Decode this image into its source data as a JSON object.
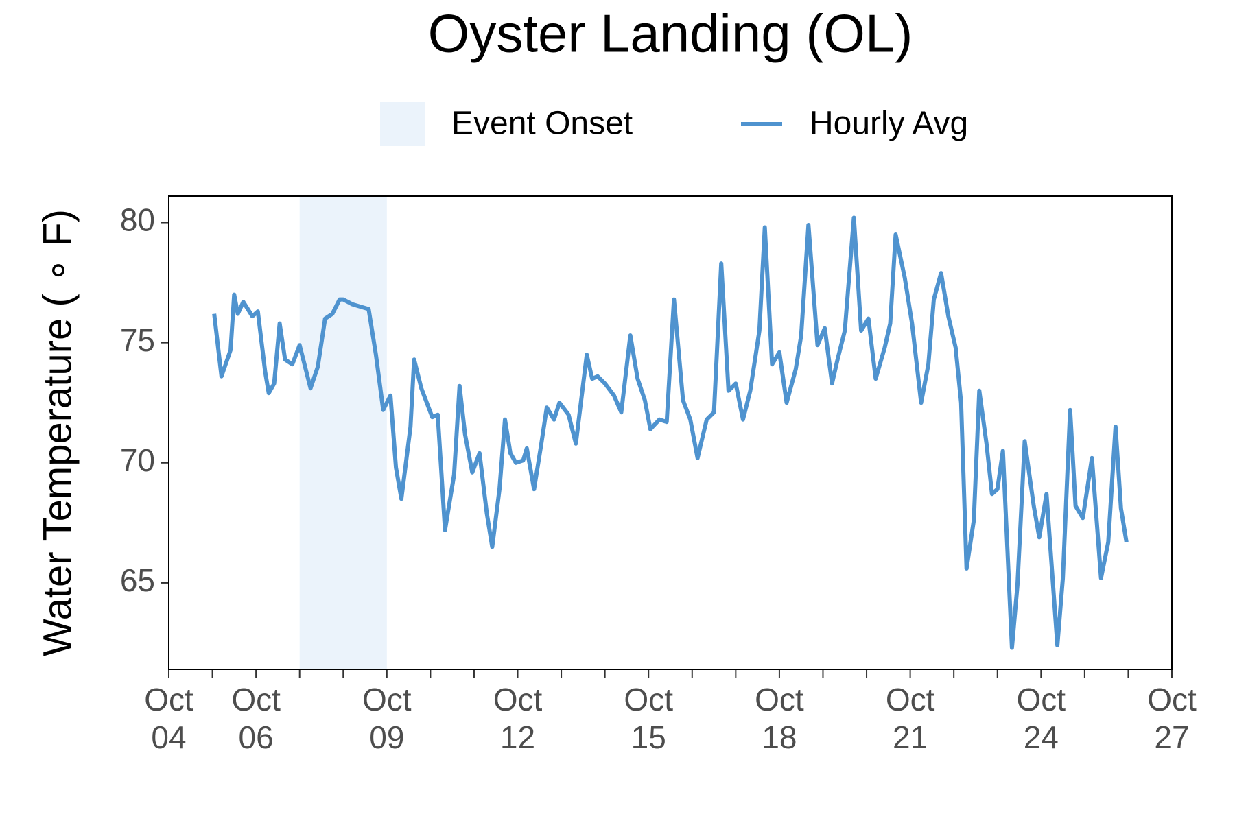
{
  "chart_data": {
    "type": "line",
    "title": "Oyster Landing (OL)",
    "y_label": "Water Temperature ( ∘ F)",
    "event_onset": {
      "name": "Event Onset",
      "color": "#ebf3fb",
      "range": [
        "10-07T00:00",
        "10-09T00:00"
      ]
    },
    "x": [
      "10-05T01:00",
      "10-05T05:00",
      "10-05T10:00",
      "10-05T12:00",
      "10-05T14:00",
      "10-05T17:00",
      "10-05T22:00",
      "10-06T01:00",
      "10-06T05:00",
      "10-06T07:00",
      "10-06T10:00",
      "10-06T13:00",
      "10-06T16:00",
      "10-06T20:00",
      "10-07T00:00",
      "10-07T06:00",
      "10-07T10:00",
      "10-07T14:00",
      "10-07T18:00",
      "10-07T22:00",
      "10-08T00:00",
      "10-08T05:00",
      "10-08T14:00",
      "10-08T18:00",
      "10-08T22:00",
      "10-09T02:00",
      "10-09T05:00",
      "10-09T08:00",
      "10-09T13:00",
      "10-09T15:00",
      "10-09T19:00",
      "10-10T01:00",
      "10-10T04:00",
      "10-10T08:00",
      "10-10T13:00",
      "10-10T16:00",
      "10-10T19:00",
      "10-10T23:00",
      "10-11T03:00",
      "10-11T07:00",
      "10-11T10:00",
      "10-11T14:00",
      "10-11T17:00",
      "10-11T20:00",
      "10-11T23:00",
      "10-12T03:00",
      "10-12T05:00",
      "10-12T09:00",
      "10-12T13:00",
      "10-12T16:00",
      "10-12T20:00",
      "10-12T23:00",
      "10-13T04:00",
      "10-13T08:00",
      "10-13T14:00",
      "10-13T17:00",
      "10-13T20:00",
      "10-14T00:00",
      "10-14T05:00",
      "10-14T09:00",
      "10-14T14:00",
      "10-14T18:00",
      "10-14T22:00",
      "10-15T01:00",
      "10-15T06:00",
      "10-15T10:00",
      "10-15T14:00",
      "10-15T19:00",
      "10-15T23:00",
      "10-16T03:00",
      "10-16T08:00",
      "10-16T12:00",
      "10-16T16:00",
      "10-16T20:00",
      "10-17T00:00",
      "10-17T04:00",
      "10-17T08:00",
      "10-17T13:00",
      "10-17T16:00",
      "10-17T20:00",
      "10-18T00:00",
      "10-18T04:00",
      "10-18T09:00",
      "10-18T12:00",
      "10-18T16:00",
      "10-18T21:00",
      "10-19T01:00",
      "10-19T05:00",
      "10-19T08:00",
      "10-19T12:00",
      "10-19T17:00",
      "10-19T21:00",
      "10-20T01:00",
      "10-20T05:00",
      "10-20T10:00",
      "10-20T13:00",
      "10-20T16:00",
      "10-20T21:00",
      "10-21T01:00",
      "10-21T06:00",
      "10-21T10:00",
      "10-21T13:00",
      "10-21T17:00",
      "10-21T21:00",
      "10-22T01:00",
      "10-22T04:00",
      "10-22T07:00",
      "10-22T11:00",
      "10-22T14:00",
      "10-22T18:00",
      "10-22T21:00",
      "10-23T00:00",
      "10-23T03:00",
      "10-23T08:00",
      "10-23T11:00",
      "10-23T15:00",
      "10-23T20:00",
      "10-23T23:00",
      "10-24T03:00",
      "10-24T09:00",
      "10-24T12:00",
      "10-24T16:00",
      "10-24T19:00",
      "10-24T23:00",
      "10-25T04:00",
      "10-25T09:00",
      "10-25T13:00",
      "10-25T17:00",
      "10-25T20:00",
      "10-25T23:00"
    ],
    "series": [
      {
        "name": "Hourly Avg",
        "color": "#4f93cf",
        "values": [
          76.2,
          73.6,
          74.7,
          77.0,
          76.2,
          76.7,
          76.1,
          76.3,
          73.8,
          72.9,
          73.3,
          75.8,
          74.3,
          74.1,
          74.9,
          73.1,
          74.0,
          76.0,
          76.2,
          76.8,
          76.8,
          76.6,
          76.4,
          74.5,
          72.2,
          72.8,
          69.8,
          68.5,
          71.5,
          74.3,
          73.1,
          71.9,
          72.0,
          67.2,
          69.5,
          73.2,
          71.2,
          69.6,
          70.4,
          67.9,
          66.5,
          68.9,
          71.8,
          70.4,
          70.0,
          70.1,
          70.6,
          68.9,
          70.8,
          72.3,
          71.8,
          72.5,
          72.0,
          70.8,
          74.5,
          73.5,
          73.6,
          73.3,
          72.8,
          72.1,
          75.3,
          73.5,
          72.6,
          71.4,
          71.8,
          71.7,
          76.8,
          72.6,
          71.8,
          70.2,
          71.8,
          72.1,
          78.3,
          73.0,
          73.3,
          71.8,
          73.0,
          75.5,
          79.8,
          74.1,
          74.6,
          72.5,
          73.9,
          75.3,
          79.9,
          74.9,
          75.6,
          73.3,
          74.3,
          75.5,
          80.2,
          75.5,
          76.0,
          73.5,
          74.8,
          75.8,
          79.5,
          77.7,
          75.8,
          72.5,
          74.1,
          76.8,
          77.9,
          76.1,
          74.8,
          72.5,
          65.6,
          67.6,
          73.0,
          70.8,
          68.7,
          68.9,
          70.5,
          62.3,
          64.9,
          70.9,
          68.2,
          66.9,
          68.7,
          62.4,
          65.2,
          72.2,
          68.2,
          67.7,
          70.2,
          65.2,
          66.7,
          71.5,
          68.1,
          66.7
        ]
      }
    ],
    "xlim": [
      "10-04",
      "10-27"
    ],
    "xticks": [
      {
        "value": "10-04",
        "label": "Oct\n04"
      },
      {
        "value": "10-06",
        "label": "Oct\n06"
      },
      {
        "value": "10-09",
        "label": "Oct\n09"
      },
      {
        "value": "10-12",
        "label": "Oct\n12"
      },
      {
        "value": "10-15",
        "label": "Oct\n15"
      },
      {
        "value": "10-18",
        "label": "Oct\n18"
      },
      {
        "value": "10-21",
        "label": "Oct\n21"
      },
      {
        "value": "10-24",
        "label": "Oct\n24"
      },
      {
        "value": "10-27",
        "label": "Oct\n27"
      }
    ],
    "xminor_ticks": [
      "10-05",
      "10-07",
      "10-08",
      "10-10",
      "10-11",
      "10-13",
      "10-14",
      "10-16",
      "10-17",
      "10-19",
      "10-20",
      "10-22",
      "10-23",
      "10-25",
      "10-26"
    ],
    "ylim": [
      61.4,
      81.1
    ],
    "yticks": [
      65,
      70,
      75,
      80
    ],
    "grid": false
  }
}
